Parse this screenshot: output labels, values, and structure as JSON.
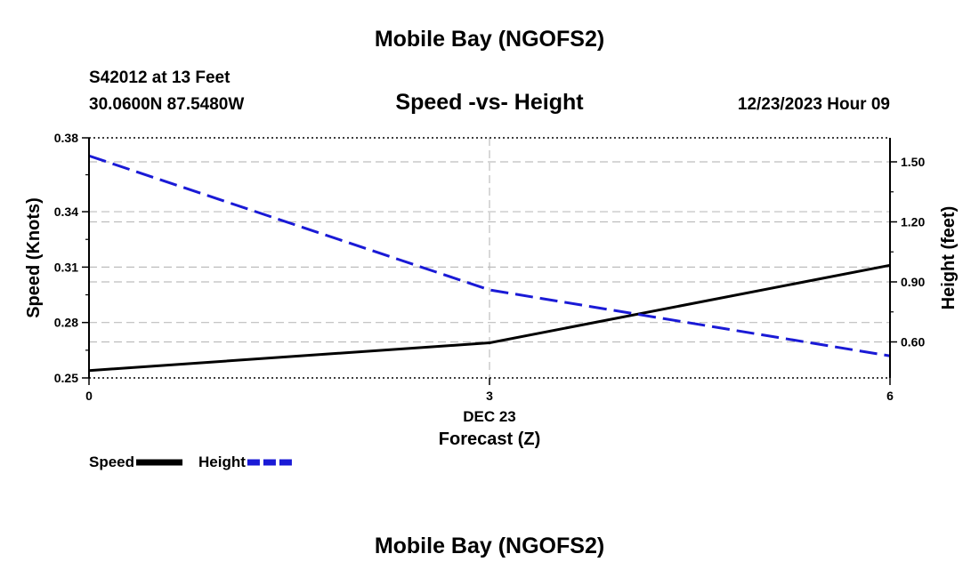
{
  "page": {
    "title_top": "Mobile Bay (NGOFS2)",
    "title_bottom": "Mobile Bay (NGOFS2)",
    "station_line": "S42012 at 13 Feet",
    "coords_line": "30.0600N  87.5480W",
    "date_line": "12/23/2023 Hour 09"
  },
  "chart_data": {
    "type": "line",
    "title": "Speed -vs- Height",
    "xlabel": "Forecast (Z)",
    "x_sublabel": "DEC 23",
    "x": [
      0,
      3,
      6
    ],
    "xlim": [
      0,
      6
    ],
    "x_ticks": [
      "0",
      "3",
      "6"
    ],
    "y_left": {
      "label": "Speed (Knots)",
      "lim": [
        0.25,
        0.38
      ],
      "ticks": [
        0.25,
        0.28,
        0.31,
        0.34,
        0.38
      ],
      "tick_labels": [
        "0.25",
        "0.28",
        "0.31",
        "0.34",
        "0.38"
      ]
    },
    "y_right": {
      "label": "Height (feet)",
      "lim": [
        0.42,
        1.62
      ],
      "ticks": [
        0.6,
        0.9,
        1.2,
        1.5
      ],
      "tick_labels": [
        "0.60",
        "0.90",
        "1.20",
        "1.50"
      ]
    },
    "series": [
      {
        "name": "Speed",
        "axis": "left",
        "color": "#000000",
        "dash": "solid",
        "values": [
          0.254,
          0.269,
          0.311
        ]
      },
      {
        "name": "Height",
        "axis": "right",
        "color": "#1a1ad6",
        "dash": "dashed",
        "values": [
          1.53,
          0.86,
          0.53
        ]
      }
    ],
    "legend": [
      {
        "label": "Speed",
        "color": "#000000",
        "dash": "solid"
      },
      {
        "label": "Height",
        "color": "#1a1ad6",
        "dash": "dashed"
      }
    ]
  }
}
